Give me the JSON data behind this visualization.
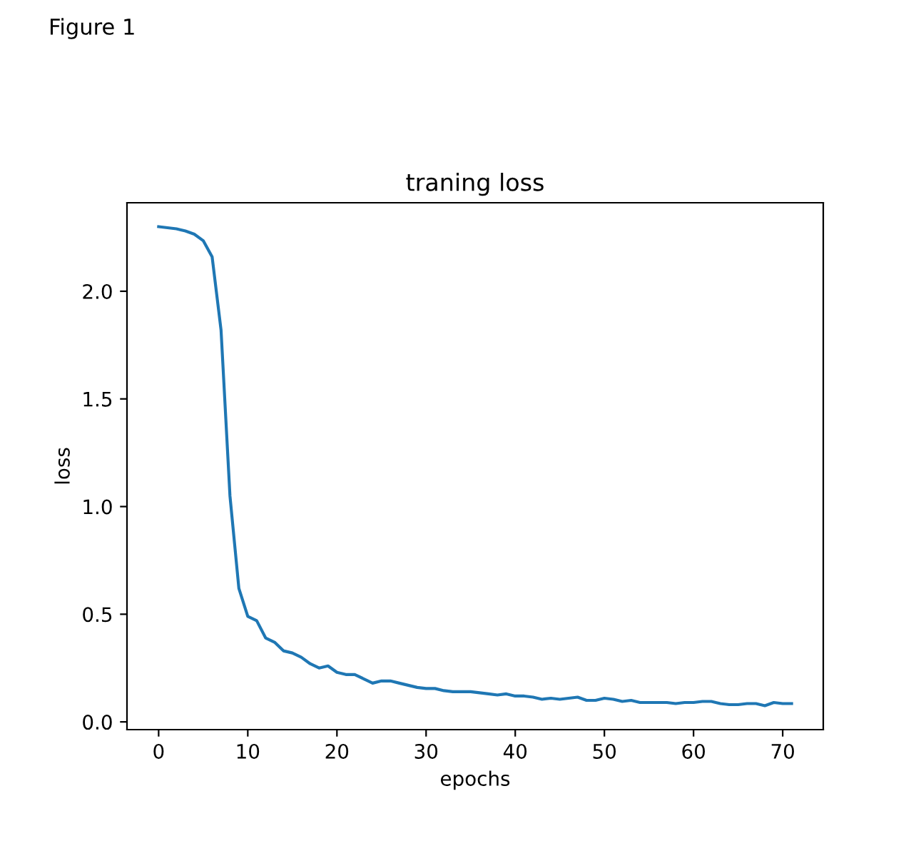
{
  "chart_data": {
    "type": "line",
    "title": "traning loss",
    "xlabel": "epochs",
    "ylabel": "loss",
    "annotations": [
      "Figure 1"
    ],
    "x": [
      0,
      1,
      2,
      3,
      4,
      5,
      6,
      7,
      8,
      9,
      10,
      11,
      12,
      13,
      14,
      15,
      16,
      17,
      18,
      19,
      20,
      21,
      22,
      23,
      24,
      25,
      26,
      27,
      28,
      29,
      30,
      31,
      32,
      33,
      34,
      35,
      36,
      37,
      38,
      39,
      40,
      41,
      42,
      43,
      44,
      45,
      46,
      47,
      48,
      49,
      50,
      51,
      52,
      53,
      54,
      55,
      56,
      57,
      58,
      59,
      60,
      61,
      62,
      63,
      64,
      65,
      66,
      67,
      68,
      69,
      70,
      71
    ],
    "series": [
      {
        "color": "#1f77b4",
        "values": [
          2.3,
          2.295,
          2.29,
          2.28,
          2.265,
          2.235,
          2.16,
          1.82,
          1.05,
          0.62,
          0.49,
          0.47,
          0.39,
          0.37,
          0.33,
          0.32,
          0.3,
          0.27,
          0.25,
          0.26,
          0.23,
          0.22,
          0.22,
          0.2,
          0.18,
          0.19,
          0.19,
          0.18,
          0.17,
          0.16,
          0.155,
          0.155,
          0.145,
          0.14,
          0.14,
          0.14,
          0.135,
          0.13,
          0.125,
          0.13,
          0.12,
          0.12,
          0.115,
          0.105,
          0.11,
          0.105,
          0.11,
          0.115,
          0.1,
          0.1,
          0.11,
          0.105,
          0.095,
          0.1,
          0.09,
          0.09,
          0.09,
          0.09,
          0.085,
          0.09,
          0.09,
          0.095,
          0.095,
          0.085,
          0.08,
          0.08,
          0.085,
          0.085,
          0.075,
          0.09,
          0.085,
          0.085
        ]
      }
    ],
    "xlim": [
      -3.55,
      74.55
    ],
    "ylim": [
      -0.036,
      2.411
    ],
    "xticks": [
      0,
      10,
      20,
      30,
      40,
      50,
      60,
      70
    ],
    "yticks": [
      {
        "value": 0,
        "label": "0.0"
      },
      0.5,
      {
        "value": 1,
        "label": "1.0"
      },
      1.5,
      {
        "value": 2,
        "label": "2.0"
      }
    ],
    "grid": false
  }
}
